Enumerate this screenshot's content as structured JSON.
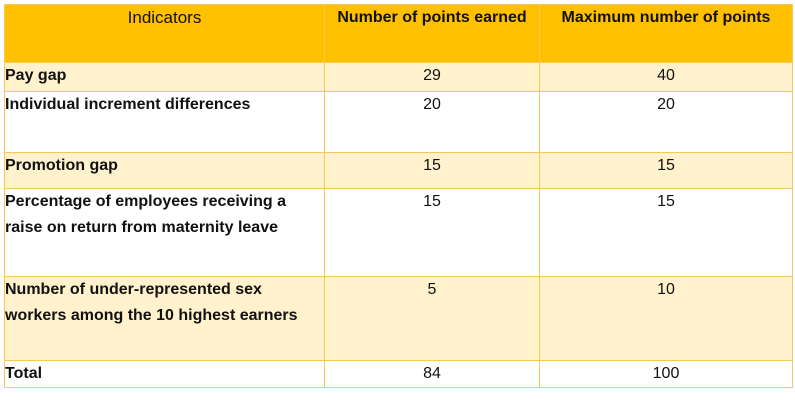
{
  "table": {
    "headers": [
      "Indicators",
      "Number of points earned",
      "Maximum number of points"
    ],
    "rows": [
      {
        "indicator": "Pay gap",
        "earned": "29",
        "max": "40"
      },
      {
        "indicator": "Individual increment differences",
        "earned": "20",
        "max": "20"
      },
      {
        "indicator": "Promotion gap",
        "earned": "15",
        "max": "15"
      },
      {
        "indicator": "Percentage of employees receiving a raise on return from maternity leave",
        "earned": "15",
        "max": "15"
      },
      {
        "indicator": "Number of under-represented sex workers among the 10 highest earners",
        "earned": "5",
        "max": "10"
      },
      {
        "indicator": "Total",
        "earned": "84",
        "max": "100"
      }
    ]
  },
  "colors": {
    "header_bg": "#ffc000",
    "shaded_row_bg": "#fff2cc",
    "border": "#f3c95a"
  }
}
